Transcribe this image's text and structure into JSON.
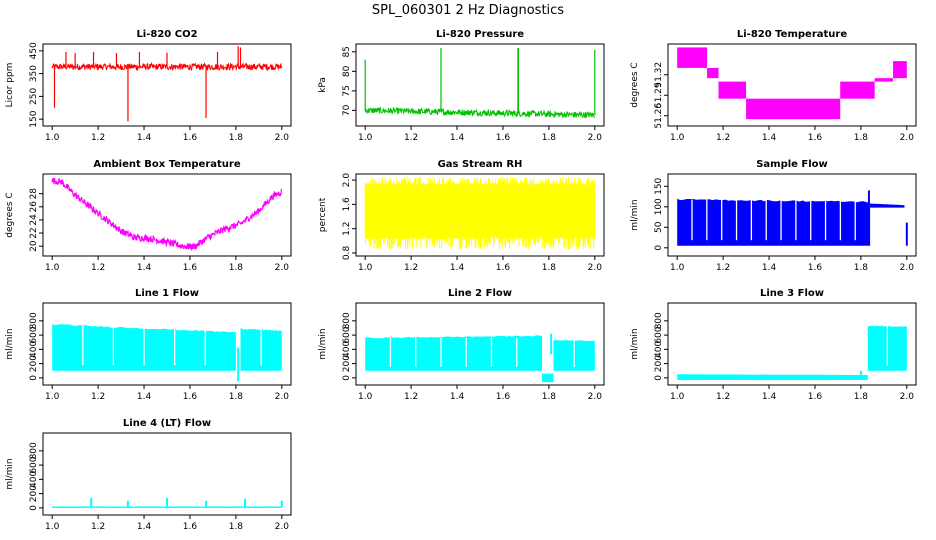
{
  "figure_title": "SPL_060301  2 Hz Diagnostics",
  "chart_data": [
    {
      "type": "line",
      "title": "Li-820 CO2",
      "ylabel": "Licor ppm",
      "color": "#ff0000",
      "xlim": [
        1.0,
        2.0
      ],
      "ylim": [
        120,
        480
      ],
      "xticks": [
        "1.0",
        "1.2",
        "1.4",
        "1.6",
        "1.8",
        "2.0"
      ],
      "yticks": [
        150,
        250,
        350,
        450
      ],
      "baseline": 380,
      "band": 14,
      "spikes": [
        {
          "x": 1.06,
          "y": 445
        },
        {
          "x": 1.1,
          "y": 440
        },
        {
          "x": 1.18,
          "y": 445
        },
        {
          "x": 1.28,
          "y": 440
        },
        {
          "x": 1.33,
          "y": 140
        },
        {
          "x": 1.38,
          "y": 445
        },
        {
          "x": 1.5,
          "y": 442
        },
        {
          "x": 1.67,
          "y": 155
        },
        {
          "x": 1.72,
          "y": 445
        },
        {
          "x": 1.81,
          "y": 470
        },
        {
          "x": 1.82,
          "y": 465
        },
        {
          "x": 1.01,
          "y": 200
        }
      ]
    },
    {
      "type": "line",
      "title": "Li-820 Pressure",
      "ylabel": "kPa",
      "color": "#00c000",
      "xlim": [
        1.0,
        2.0
      ],
      "ylim": [
        66,
        87
      ],
      "xticks": [
        "1.0",
        "1.2",
        "1.4",
        "1.6",
        "1.8",
        "2.0"
      ],
      "yticks": [
        70,
        75,
        80,
        85
      ],
      "start": 70.0,
      "end": 68.8,
      "band": 0.8,
      "spikes": [
        {
          "x": 1.0,
          "y": 83
        },
        {
          "x": 1.33,
          "y": 86
        },
        {
          "x": 1.665,
          "y": 86
        },
        {
          "x": 1.667,
          "y": 86
        },
        {
          "x": 2.0,
          "y": 85.5
        }
      ]
    },
    {
      "type": "step",
      "title": "Li-820 Temperature",
      "ylabel": "degrees C",
      "color": "#ff00ff",
      "xlim": [
        1.0,
        2.0
      ],
      "ylim": [
        51.245,
        51.365
      ],
      "xticks": [
        "1.0",
        "1.2",
        "1.4",
        "1.6",
        "1.8",
        "2.0"
      ],
      "yticks": [
        51.26,
        51.29,
        51.32
      ],
      "tick_labels": [
        "51.26",
        "51.29",
        "51.32"
      ],
      "blocks": [
        {
          "x0": 1.0,
          "x1": 1.13,
          "y0": 51.33,
          "y1": 51.36
        },
        {
          "x0": 1.13,
          "x1": 1.18,
          "y0": 51.315,
          "y1": 51.33
        },
        {
          "x0": 1.18,
          "x1": 1.3,
          "y0": 51.285,
          "y1": 51.31
        },
        {
          "x0": 1.3,
          "x1": 1.71,
          "y0": 51.255,
          "y1": 51.285
        },
        {
          "x0": 1.71,
          "x1": 1.86,
          "y0": 51.285,
          "y1": 51.31
        },
        {
          "x0": 1.86,
          "x1": 1.94,
          "y0": 51.31,
          "y1": 51.315
        },
        {
          "x0": 1.94,
          "x1": 2.0,
          "y0": 51.315,
          "y1": 51.34
        }
      ]
    },
    {
      "type": "line",
      "title": "Ambient Box Temperature",
      "ylabel": "degrees C",
      "color": "#ff00ff",
      "xlim": [
        1.0,
        2.0
      ],
      "ylim": [
        18.5,
        31.0
      ],
      "xticks": [
        "1.0",
        "1.2",
        "1.4",
        "1.6",
        "1.8",
        "2.0"
      ],
      "yticks": [
        20,
        22,
        24,
        26,
        28
      ],
      "band": 0.5,
      "points": [
        {
          "x": 1.0,
          "y": 30.0
        },
        {
          "x": 1.04,
          "y": 29.8
        },
        {
          "x": 1.1,
          "y": 27.8
        },
        {
          "x": 1.2,
          "y": 25.0
        },
        {
          "x": 1.3,
          "y": 22.3
        },
        {
          "x": 1.36,
          "y": 21.3
        },
        {
          "x": 1.42,
          "y": 21.2
        },
        {
          "x": 1.5,
          "y": 20.6
        },
        {
          "x": 1.57,
          "y": 20.0
        },
        {
          "x": 1.62,
          "y": 19.9
        },
        {
          "x": 1.68,
          "y": 21.4
        },
        {
          "x": 1.75,
          "y": 22.6
        },
        {
          "x": 1.82,
          "y": 23.4
        },
        {
          "x": 1.9,
          "y": 25.4
        },
        {
          "x": 1.96,
          "y": 27.6
        },
        {
          "x": 2.0,
          "y": 28.3
        }
      ]
    },
    {
      "type": "noise",
      "title": "Gas Stream RH",
      "ylabel": "percent",
      "color": "#ffff00",
      "xlim": [
        1.0,
        2.0
      ],
      "ylim": [
        0.75,
        2.1
      ],
      "xticks": [
        "1.0",
        "1.2",
        "1.4",
        "1.6",
        "1.8",
        "2.0"
      ],
      "yticks": [
        0.8,
        1.2,
        1.6,
        2.0
      ],
      "tick_labels": [
        "0.8",
        "1.2",
        "1.6",
        "2.0"
      ],
      "upper": 1.9,
      "lower": 1.1,
      "upper_max": 2.05,
      "lower_min": 0.85
    },
    {
      "type": "flow",
      "title": "Sample Flow",
      "ylabel": "ml/min",
      "color": "#0000ff",
      "xlim": [
        1.0,
        2.0
      ],
      "ylim": [
        -20,
        180
      ],
      "xticks": [
        "1.0",
        "1.2",
        "1.4",
        "1.6",
        "1.8",
        "2.0"
      ],
      "yticks": [
        0,
        50,
        100,
        150
      ],
      "segments": [
        {
          "x0": 1.0,
          "x1": 1.84,
          "low": 5,
          "high": 118,
          "drift_end": 112,
          "gaps": 12
        },
        {
          "x0": 1.84,
          "x1": 1.99,
          "low": 98,
          "high": 108,
          "drift_end": 104,
          "gaps": 0
        }
      ],
      "spikes": [
        {
          "x": 1.835,
          "y": 140
        },
        {
          "x": 2.0,
          "y": 5
        }
      ]
    },
    {
      "type": "flow",
      "title": "Line 1 Flow",
      "ylabel": "ml/min",
      "color": "#00ffff",
      "xlim": [
        1.0,
        2.0
      ],
      "ylim": [
        -100,
        1050
      ],
      "xticks": [
        "1.0",
        "1.2",
        "1.4",
        "1.6",
        "1.8",
        "2.0"
      ],
      "yticks": [
        0,
        200,
        400,
        600,
        800
      ],
      "segments": [
        {
          "x0": 1.0,
          "x1": 1.8,
          "low": 100,
          "high": 750,
          "drift_end": 640,
          "gaps": 5
        },
        {
          "x0": 1.82,
          "x1": 2.0,
          "low": 100,
          "high": 690,
          "drift_end": 660,
          "gaps": 1
        }
      ],
      "spikes": [
        {
          "x": 1.81,
          "y": -50
        }
      ]
    },
    {
      "type": "flow",
      "title": "Line 2 Flow",
      "ylabel": "ml/min",
      "color": "#00ffff",
      "xlim": [
        1.0,
        2.0
      ],
      "ylim": [
        -100,
        1050
      ],
      "xticks": [
        "1.0",
        "1.2",
        "1.4",
        "1.6",
        "1.8",
        "2.0"
      ],
      "yticks": [
        0,
        200,
        400,
        600,
        800
      ],
      "segments": [
        {
          "x0": 1.0,
          "x1": 1.77,
          "low": 100,
          "high": 560,
          "drift_end": 590,
          "gaps": 6
        },
        {
          "x0": 1.77,
          "x1": 1.82,
          "low": -60,
          "high": 60,
          "drift_end": 60,
          "gaps": 0
        },
        {
          "x0": 1.82,
          "x1": 2.0,
          "low": 100,
          "high": 530,
          "drift_end": 520,
          "gaps": 1
        }
      ],
      "spikes": [
        {
          "x": 1.81,
          "y": 620
        }
      ]
    },
    {
      "type": "flow",
      "title": "Line 3 Flow",
      "ylabel": "ml/min",
      "color": "#00ffff",
      "xlim": [
        1.0,
        2.0
      ],
      "ylim": [
        -100,
        1050
      ],
      "xticks": [
        "1.0",
        "1.2",
        "1.4",
        "1.6",
        "1.8",
        "2.0"
      ],
      "yticks": [
        0,
        200,
        400,
        600,
        800
      ],
      "segments": [
        {
          "x0": 1.0,
          "x1": 1.83,
          "low": -30,
          "high": 50,
          "drift_end": 40,
          "gaps": 0
        },
        {
          "x0": 1.83,
          "x1": 2.0,
          "low": 100,
          "high": 730,
          "drift_end": 720,
          "gaps": 1
        }
      ],
      "spikes": [
        {
          "x": 1.8,
          "y": 100
        }
      ]
    },
    {
      "type": "flow",
      "title": "Line 4 (LT) Flow",
      "ylabel": "ml/min",
      "color": "#00ffff",
      "xlim": [
        1.0,
        2.0
      ],
      "ylim": [
        -100,
        1050
      ],
      "xticks": [
        "1.0",
        "1.2",
        "1.4",
        "1.6",
        "1.8",
        "2.0"
      ],
      "yticks": [
        0,
        200,
        400,
        600,
        800
      ],
      "segments": [
        {
          "x0": 1.0,
          "x1": 2.0,
          "low": 0,
          "high": 20,
          "drift_end": 20,
          "gaps": 0
        }
      ],
      "spikes": [
        {
          "x": 1.17,
          "y": 140
        },
        {
          "x": 1.33,
          "y": 100
        },
        {
          "x": 1.5,
          "y": 140
        },
        {
          "x": 1.67,
          "y": 100
        },
        {
          "x": 1.84,
          "y": 130
        },
        {
          "x": 2.0,
          "y": 100
        }
      ]
    }
  ]
}
